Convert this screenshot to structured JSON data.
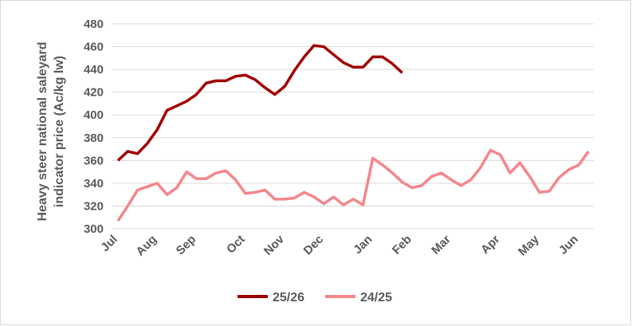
{
  "chart_data": {
    "type": "line",
    "y_label": [
      "Heavy steer national saleyard",
      "indicator price (Ac/kg lw)"
    ],
    "categories": [
      "Jul",
      null,
      null,
      null,
      "Aug",
      null,
      null,
      null,
      "Sep",
      null,
      null,
      null,
      null,
      "Oct",
      null,
      null,
      null,
      "Nov",
      null,
      null,
      null,
      "Dec",
      null,
      null,
      null,
      null,
      "Jan",
      null,
      null,
      null,
      "Feb",
      null,
      null,
      null,
      "Mar",
      null,
      null,
      null,
      null,
      "Apr",
      null,
      null,
      null,
      "May",
      null,
      null,
      null,
      "Jun",
      null
    ],
    "series": [
      {
        "name": "25/26",
        "color": "#a00000",
        "values": [
          360,
          368,
          366,
          375,
          387,
          404,
          408,
          412,
          418,
          428,
          430,
          430,
          434,
          435,
          431,
          424,
          418,
          425,
          439,
          451,
          461,
          460,
          453,
          446,
          442,
          442,
          451,
          451,
          445,
          437,
          null,
          null,
          null,
          null,
          null,
          null,
          null,
          null,
          null,
          null,
          null,
          null,
          null,
          null,
          null,
          null,
          null,
          null,
          null
        ]
      },
      {
        "name": "24/25",
        "color": "#f4868a",
        "values": [
          307,
          320,
          334,
          337,
          340,
          330,
          336,
          350,
          344,
          344,
          349,
          351,
          343,
          331,
          332,
          334,
          326,
          326,
          327,
          332,
          328,
          322,
          328,
          321,
          326,
          321,
          362,
          356,
          349,
          341,
          336,
          338,
          346,
          349,
          343,
          338,
          343,
          354,
          369,
          365,
          349,
          358,
          346,
          332,
          333,
          345,
          352,
          356,
          368
        ]
      }
    ],
    "ylim": [
      300,
      480
    ],
    "yticks": [
      300,
      320,
      340,
      360,
      380,
      400,
      420,
      440,
      460,
      480
    ],
    "grid": true,
    "legend": "bottom"
  }
}
